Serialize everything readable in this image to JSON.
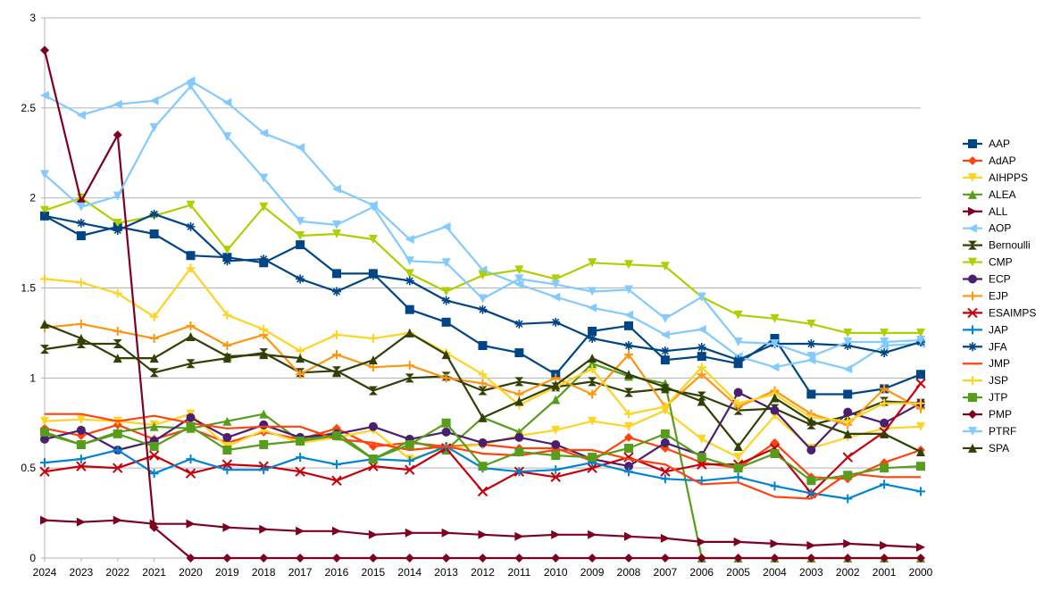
{
  "chart_data": {
    "type": "line",
    "title": "",
    "xlabel": "",
    "ylabel": "",
    "ylim": [
      0,
      3
    ],
    "yticks": [
      "0",
      "0.5",
      "1",
      "1.5",
      "2",
      "2.5",
      "3"
    ],
    "grid": true,
    "legend_position": "right",
    "x": [
      "2024",
      "2023",
      "2022",
      "2021",
      "2020",
      "2019",
      "2018",
      "2017",
      "2016",
      "2015",
      "2014",
      "2013",
      "2012",
      "2011",
      "2010",
      "2009",
      "2008",
      "2007",
      "2006",
      "2005",
      "2004",
      "2003",
      "2002",
      "2001",
      "2000"
    ],
    "series": [
      {
        "name": "AAP",
        "color": "#004586",
        "marker": "square",
        "values": [
          1.9,
          1.79,
          1.84,
          1.8,
          1.68,
          1.67,
          1.64,
          1.74,
          1.58,
          1.58,
          1.38,
          1.31,
          1.18,
          1.14,
          1.02,
          1.26,
          1.29,
          1.1,
          1.12,
          1.08,
          1.22,
          0.91,
          0.91,
          0.94,
          1.02
        ]
      },
      {
        "name": "AdAP",
        "color": "#ff420e",
        "marker": "diamond",
        "values": [
          0.72,
          0.68,
          0.74,
          0.66,
          0.72,
          0.64,
          0.7,
          0.66,
          0.72,
          0.62,
          0.64,
          0.62,
          0.63,
          0.61,
          0.61,
          0.54,
          0.67,
          0.61,
          0.53,
          0.5,
          0.64,
          0.45,
          0.44,
          0.53,
          0.6
        ]
      },
      {
        "name": "AIHPPS",
        "color": "#ffd320",
        "marker": "triangle-down",
        "values": [
          0.76,
          0.77,
          0.76,
          0.74,
          0.8,
          0.62,
          0.71,
          0.64,
          0.67,
          0.71,
          0.55,
          0.61,
          0.63,
          0.68,
          0.71,
          0.76,
          0.73,
          0.82,
          0.66,
          0.56,
          0.79,
          0.61,
          0.67,
          0.72,
          0.73
        ]
      },
      {
        "name": "ALEA",
        "color": "#579d1c",
        "marker": "triangle-up",
        "values": [
          0.69,
          0.63,
          0.7,
          0.73,
          0.72,
          0.76,
          0.8,
          0.65,
          0.7,
          0.55,
          0.65,
          0.6,
          0.78,
          0.7,
          0.88,
          1.08,
          1.01,
          0.97,
          0.0,
          0.0,
          0.0,
          0.0,
          0.0,
          0.0,
          0.0
        ]
      },
      {
        "name": "ALL",
        "color": "#7e0021",
        "marker": "triangle-right",
        "values": [
          0.21,
          0.2,
          0.21,
          0.19,
          0.19,
          0.17,
          0.16,
          0.15,
          0.15,
          0.13,
          0.14,
          0.14,
          0.13,
          0.12,
          0.13,
          0.13,
          0.12,
          0.11,
          0.09,
          0.09,
          0.08,
          0.07,
          0.08,
          0.07,
          0.06
        ]
      },
      {
        "name": "AOP",
        "color": "#83caff",
        "marker": "triangle-left",
        "values": [
          2.57,
          2.46,
          2.52,
          2.54,
          2.65,
          2.53,
          2.36,
          2.28,
          2.05,
          1.96,
          1.77,
          1.84,
          1.6,
          1.52,
          1.45,
          1.39,
          1.35,
          1.24,
          1.27,
          1.12,
          1.06,
          1.1,
          1.05,
          1.18,
          1.19
        ]
      },
      {
        "name": "Bernoulli",
        "color": "#314004",
        "marker": "hourglass",
        "values": [
          1.16,
          1.19,
          1.19,
          1.03,
          1.08,
          1.11,
          1.14,
          1.03,
          1.04,
          0.93,
          1.0,
          1.01,
          0.93,
          0.98,
          0.95,
          0.98,
          0.92,
          0.94,
          0.9,
          0.82,
          0.83,
          0.74,
          0.79,
          0.87,
          0.86
        ]
      },
      {
        "name": "CMP",
        "color": "#aecf00",
        "marker": "triangle-down",
        "values": [
          1.93,
          2.0,
          1.86,
          1.9,
          1.96,
          1.71,
          1.95,
          1.79,
          1.8,
          1.77,
          1.58,
          1.48,
          1.57,
          1.6,
          1.55,
          1.64,
          1.63,
          1.62,
          1.45,
          1.35,
          1.33,
          1.3,
          1.25,
          1.25,
          1.25
        ]
      },
      {
        "name": "ECP",
        "color": "#4b1f6f",
        "marker": "circle",
        "values": [
          0.66,
          0.71,
          0.6,
          0.65,
          0.78,
          0.67,
          0.74,
          0.67,
          0.69,
          0.73,
          0.66,
          0.7,
          0.64,
          0.67,
          0.63,
          0.55,
          0.51,
          0.64,
          0.57,
          0.92,
          0.82,
          0.6,
          0.81,
          0.75,
          0.86
        ]
      },
      {
        "name": "EJP",
        "color": "#ff950e",
        "marker": "plus",
        "values": [
          1.28,
          1.3,
          1.26,
          1.22,
          1.29,
          1.18,
          1.24,
          1.02,
          1.13,
          1.06,
          1.07,
          1.0,
          0.97,
          0.91,
          1.0,
          0.91,
          1.13,
          0.84,
          1.02,
          0.84,
          0.93,
          0.8,
          0.74,
          0.94,
          0.83
        ]
      },
      {
        "name": "ESAIMPS",
        "color": "#c5000b",
        "marker": "x",
        "values": [
          0.48,
          0.51,
          0.5,
          0.57,
          0.47,
          0.52,
          0.51,
          0.48,
          0.43,
          0.51,
          0.49,
          0.61,
          0.37,
          0.48,
          0.45,
          0.5,
          0.56,
          0.48,
          0.52,
          0.52,
          0.61,
          0.36,
          0.56,
          0.7,
          0.97
        ]
      },
      {
        "name": "JAP",
        "color": "#0084d1",
        "marker": "plus",
        "values": [
          0.53,
          0.55,
          0.6,
          0.47,
          0.55,
          0.49,
          0.49,
          0.56,
          0.52,
          0.55,
          0.54,
          0.62,
          0.5,
          0.48,
          0.49,
          0.53,
          0.48,
          0.44,
          0.43,
          0.45,
          0.4,
          0.36,
          0.33,
          0.41,
          0.37
        ]
      },
      {
        "name": "JFA",
        "color": "#004586",
        "marker": "asterisk",
        "values": [
          1.9,
          1.86,
          1.82,
          1.91,
          1.84,
          1.65,
          1.66,
          1.55,
          1.48,
          1.57,
          1.54,
          1.43,
          1.38,
          1.3,
          1.31,
          1.22,
          1.18,
          1.15,
          1.17,
          1.1,
          1.19,
          1.19,
          1.18,
          1.14,
          1.2
        ]
      },
      {
        "name": "JMP",
        "color": "#ff420e",
        "marker": "none",
        "values": [
          0.8,
          0.8,
          0.76,
          0.79,
          0.75,
          0.72,
          0.73,
          0.73,
          0.66,
          0.64,
          0.6,
          0.62,
          0.58,
          0.57,
          0.6,
          0.6,
          0.55,
          0.52,
          0.41,
          0.42,
          0.34,
          0.33,
          0.47,
          0.45,
          0.45
        ]
      },
      {
        "name": "JSP",
        "color": "#ffd320",
        "marker": "plus",
        "values": [
          1.55,
          1.53,
          1.47,
          1.34,
          1.61,
          1.35,
          1.27,
          1.15,
          1.24,
          1.22,
          1.25,
          1.14,
          1.02,
          0.85,
          0.95,
          1.05,
          0.8,
          0.84,
          1.06,
          0.86,
          0.91,
          0.78,
          0.76,
          0.86,
          0.86
        ]
      },
      {
        "name": "JTP",
        "color": "#579d1c",
        "marker": "square",
        "values": [
          0.7,
          0.63,
          0.69,
          0.62,
          0.73,
          0.6,
          0.63,
          0.65,
          0.68,
          0.55,
          0.63,
          0.75,
          0.51,
          0.59,
          0.57,
          0.56,
          0.61,
          0.69,
          0.56,
          0.5,
          0.58,
          0.43,
          0.46,
          0.5,
          0.51
        ]
      },
      {
        "name": "PMP",
        "color": "#7e0021",
        "marker": "diamond",
        "values": [
          2.82,
          1.98,
          2.35,
          0.17,
          0.0,
          0.0,
          0.0,
          0.0,
          0.0,
          0.0,
          0.0,
          0.0,
          0.0,
          0.0,
          0.0,
          0.0,
          0.0,
          0.0,
          0.0,
          0.0,
          0.0,
          0.0,
          0.0,
          0.0,
          0.0
        ]
      },
      {
        "name": "PTRF",
        "color": "#83caff",
        "marker": "triangle-down",
        "values": [
          2.13,
          1.95,
          2.01,
          2.39,
          2.62,
          2.34,
          2.11,
          1.87,
          1.85,
          1.95,
          1.65,
          1.64,
          1.44,
          1.55,
          1.52,
          1.48,
          1.49,
          1.33,
          1.45,
          1.2,
          1.19,
          1.12,
          1.2,
          1.2,
          1.21
        ]
      },
      {
        "name": "SPA",
        "color": "#314004",
        "marker": "triangle-up",
        "values": [
          1.3,
          1.22,
          1.11,
          1.11,
          1.23,
          1.12,
          1.13,
          1.11,
          1.03,
          1.1,
          1.25,
          1.13,
          0.78,
          0.87,
          0.96,
          1.11,
          1.02,
          0.95,
          0.87,
          0.62,
          0.89,
          0.76,
          0.69,
          0.69,
          0.59
        ]
      }
    ]
  }
}
